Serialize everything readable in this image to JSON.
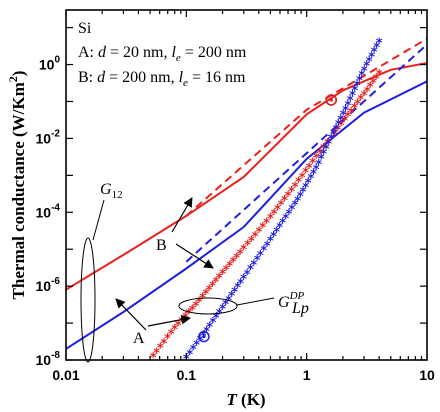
{
  "chart_data": {
    "type": "line",
    "xscale": "log",
    "yscale": "log",
    "xlim": [
      0.01,
      10
    ],
    "ylim": [
      1e-08,
      30
    ],
    "xlabel": {
      "var": "T",
      "unit": "(K)"
    },
    "ylabel": "Thermal conductance (W/Km",
    "ylabel_sup": "2",
    "ylabel_close": ")",
    "xticks": [
      {
        "value": 0.01,
        "label": "0.01"
      },
      {
        "value": 0.1,
        "label": "0.1"
      },
      {
        "value": 1,
        "label": "1"
      },
      {
        "value": 10,
        "label": "10"
      }
    ],
    "yticks": [
      {
        "value": 1e-08,
        "base": "10",
        "exp": "-8"
      },
      {
        "value": 1e-06,
        "base": "10",
        "exp": "-6"
      },
      {
        "value": 0.0001,
        "base": "10",
        "exp": "-4"
      },
      {
        "value": 0.01,
        "base": "10",
        "exp": "-2"
      },
      {
        "value": 1,
        "base": "10",
        "exp": "0"
      }
    ],
    "annotations": {
      "material": "Si",
      "line_a": {
        "prefix": "A: ",
        "d_sym": "d",
        "d_val": " = 20 nm, ",
        "l_sym": "l",
        "l_sub": "e",
        "l_val": " = 200 nm"
      },
      "line_b": {
        "prefix": "B: ",
        "d_sym": "d",
        "d_val": " = 200 nm, ",
        "l_sym": "l",
        "l_sub": "e",
        "l_val": " = 16 nm"
      },
      "g12": {
        "sym": "G",
        "sub": "12"
      },
      "gdp": {
        "sym": "G",
        "sup": "DP",
        "sub": "Lp"
      },
      "label_a": "A",
      "label_b": "B"
    },
    "series": [
      {
        "color": "#e8211c",
        "style": "solid",
        "x": [
          0.01,
          0.03,
          0.1,
          0.3,
          1,
          2,
          5,
          10
        ],
        "y": [
          8e-07,
          7e-06,
          8e-05,
          0.0009,
          0.045,
          0.2,
          0.72,
          1.1
        ]
      },
      {
        "color": "#e8211c",
        "style": "dashed",
        "x": [
          0.1,
          1,
          10
        ],
        "y": [
          8e-05,
          0.06,
          5
        ]
      },
      {
        "color": "#1f1fdc",
        "style": "solid",
        "x": [
          0.01,
          0.03,
          0.1,
          0.3,
          1,
          3,
          10
        ],
        "y": [
          2e-08,
          2e-07,
          3e-06,
          4e-05,
          0.0028,
          0.05,
          0.35
        ]
      },
      {
        "color": "#1f1fdc",
        "style": "dashed",
        "x": [
          0.1,
          1,
          10
        ],
        "y": [
          4.6e-06,
          0.004,
          3.5
        ]
      },
      {
        "color": "#e8211c",
        "style": "dotted",
        "x": [
          0.053,
          0.08,
          0.12,
          0.2,
          0.3,
          0.5,
          0.8,
          1.2,
          1.6,
          2.2,
          3,
          4
        ],
        "y": [
          1.2e-08,
          7e-08,
          3e-07,
          2.2e-06,
          1e-05,
          7e-05,
          0.0005,
          0.003,
          0.01,
          0.04,
          0.15,
          0.55
        ]
      },
      {
        "color": "#1f1fdc",
        "style": "dotted",
        "x": [
          0.1,
          0.13,
          0.2,
          0.3,
          0.5,
          0.8,
          1.2,
          1.6,
          2.2,
          3,
          4
        ],
        "y": [
          1.1e-08,
          3.5e-08,
          2.5e-07,
          1.6e-06,
          1.7e-05,
          0.00016,
          0.0015,
          0.01,
          0.08,
          0.7,
          4
        ]
      }
    ],
    "markers": [
      {
        "color": "#1f1fdc",
        "x": 0.14,
        "y": 4.3e-08
      },
      {
        "color": "#1f1fdc",
        "x": 1.6,
        "y": 0.11
      },
      {
        "color": "#e8211c",
        "x": 1.6,
        "y": 0.11
      }
    ]
  }
}
